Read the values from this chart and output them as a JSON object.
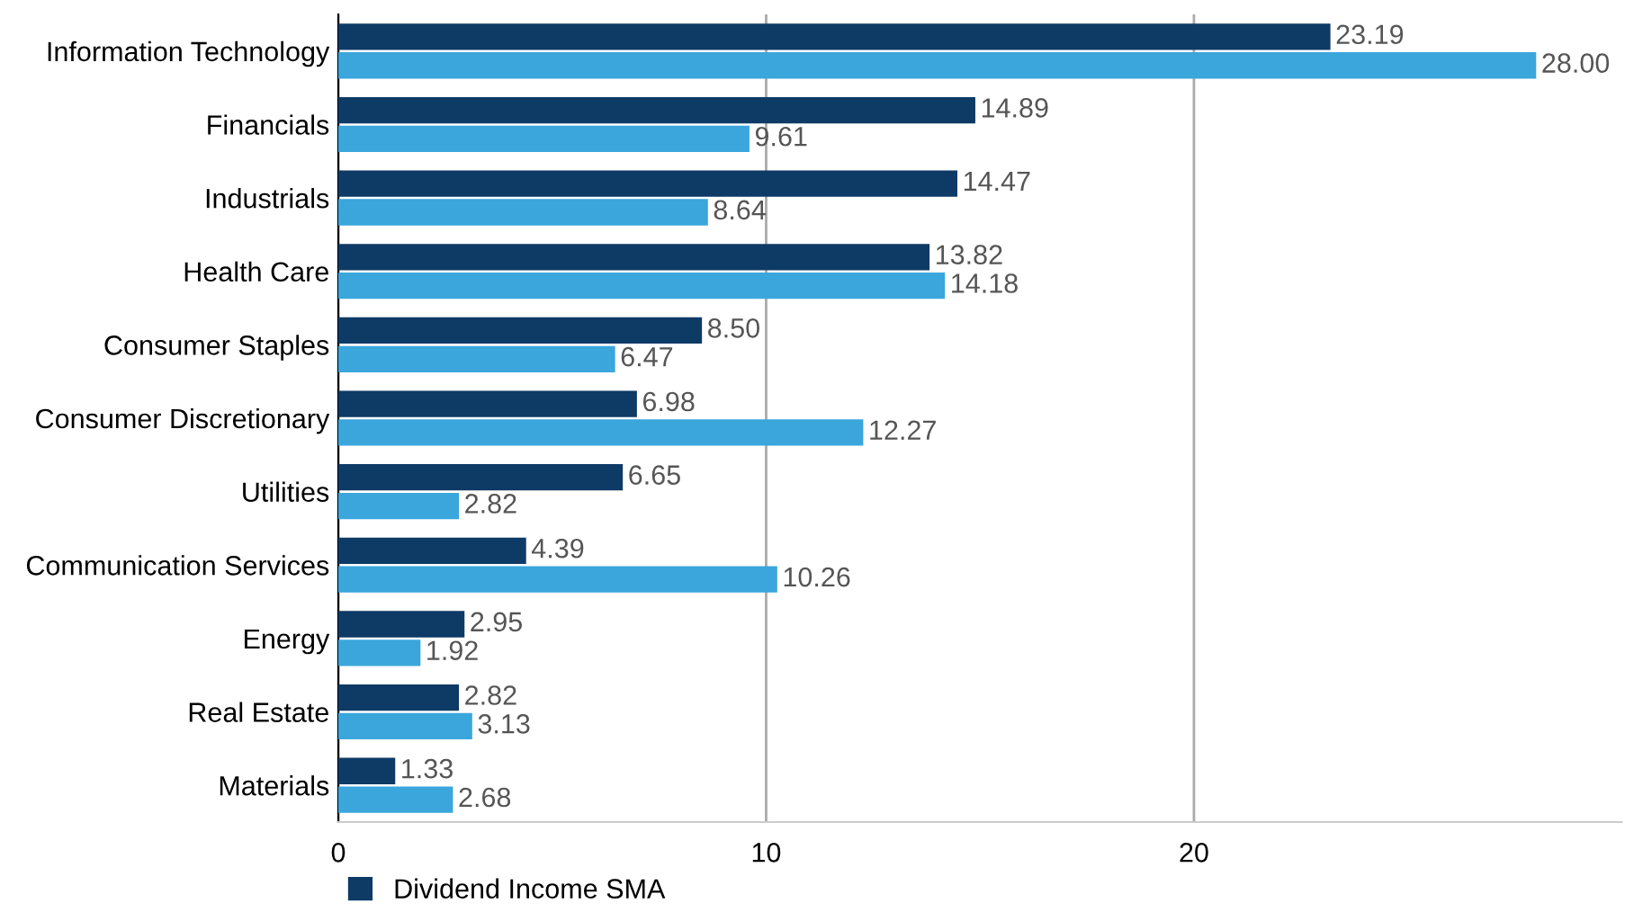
{
  "chart_data": {
    "type": "bar",
    "orientation": "horizontal",
    "categories": [
      "Information Technology",
      "Financials",
      "Industrials",
      "Health Care",
      "Consumer Staples",
      "Consumer Discretionary",
      "Utilities",
      "Communication Services",
      "Energy",
      "Real Estate",
      "Materials"
    ],
    "series": [
      {
        "name": "Dividend Income SMA",
        "color": "#0e3a66",
        "values": [
          23.19,
          14.89,
          14.47,
          13.82,
          8.5,
          6.98,
          6.65,
          4.39,
          2.95,
          2.82,
          1.33
        ],
        "value_labels": [
          "23.19",
          "14.89",
          "14.47",
          "13.82",
          "8.50",
          "6.98",
          "6.65",
          "4.39",
          "2.95",
          "2.82",
          "1.33"
        ]
      },
      {
        "color": "#3aa6dc",
        "values": [
          28.0,
          9.61,
          8.64,
          14.18,
          6.47,
          12.27,
          2.82,
          10.26,
          1.92,
          3.13,
          2.68
        ],
        "value_labels": [
          "28.00",
          "9.61",
          "8.64",
          "14.18",
          "6.47",
          "12.27",
          "2.82",
          "10.26",
          "1.92",
          "3.13",
          "2.68"
        ]
      }
    ],
    "xlim": [
      0,
      30
    ],
    "xticks": [
      0,
      10,
      20
    ],
    "grid": "x",
    "legend": "bottom left"
  }
}
